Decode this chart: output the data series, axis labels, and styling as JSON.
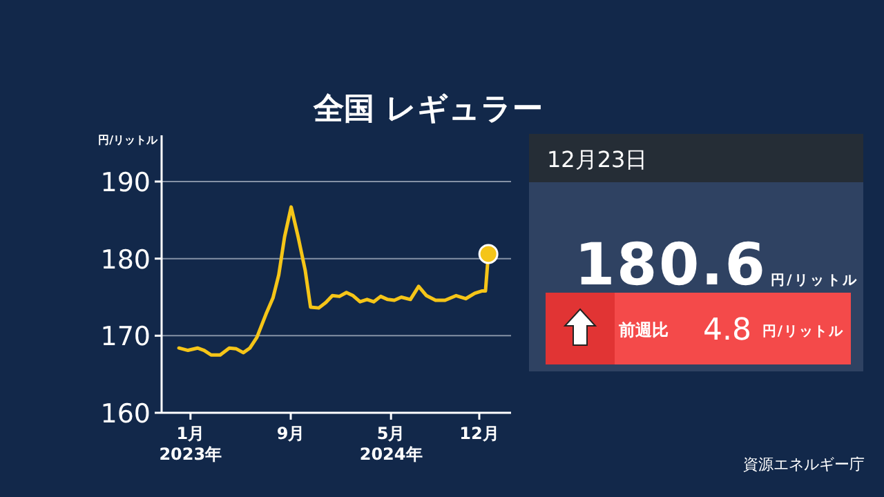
{
  "chart_data": {
    "type": "line",
    "title": "全国 レギュラー",
    "ylabel": "円/リットル",
    "xlim": [
      "2022-10-23",
      "2025-02-16"
    ],
    "xticks": [
      {
        "value": "2023-01-01",
        "label": "1月\n2023年"
      },
      {
        "value": "2023-09-01",
        "label": "9月"
      },
      {
        "value": "2024-05-01",
        "label": "5月\n2024年"
      },
      {
        "value": "2024-12-01",
        "label": "12月"
      }
    ],
    "ylim": [
      160,
      196
    ],
    "yticks": [
      160,
      170,
      180,
      190
    ],
    "grid": "y",
    "series": [
      {
        "color": "#f5c518",
        "marker": "none",
        "line_style": "solid",
        "x": [
          "2022-12-04",
          "2022-12-26",
          "2023-01-18",
          "2023-02-03",
          "2023-02-20",
          "2023-03-14",
          "2023-04-05",
          "2023-04-22",
          "2023-05-09",
          "2023-05-25",
          "2023-06-11",
          "2023-07-03",
          "2023-07-20",
          "2023-08-03",
          "2023-08-17",
          "2023-09-02",
          "2023-09-19",
          "2023-10-06",
          "2023-10-19",
          "2023-11-08",
          "2023-11-25",
          "2023-12-11",
          "2023-12-28",
          "2024-01-14",
          "2024-01-30",
          "2024-02-16",
          "2024-03-04",
          "2024-03-20",
          "2024-04-06",
          "2024-04-23",
          "2024-05-09",
          "2024-05-26",
          "2024-06-17",
          "2024-07-07",
          "2024-07-26",
          "2024-08-17",
          "2024-09-09",
          "2024-10-06",
          "2024-10-29",
          "2024-11-20",
          "2024-12-07",
          "2024-12-16",
          "2024-12-23"
        ],
        "values": [
          168.4,
          168.1,
          168.4,
          168.1,
          167.5,
          167.5,
          168.4,
          168.3,
          167.8,
          168.4,
          169.8,
          172.8,
          174.9,
          177.9,
          182.8,
          186.7,
          182.8,
          178.5,
          173.7,
          173.6,
          174.3,
          175.2,
          175.1,
          175.6,
          175.2,
          174.4,
          174.7,
          174.4,
          175.1,
          174.7,
          174.6,
          175.0,
          174.7,
          176.4,
          175.2,
          174.6,
          174.6,
          175.2,
          174.8,
          175.5,
          175.8,
          175.8,
          180.6
        ]
      },
      {
        "type": "scatter",
        "color": "#f5c518",
        "marker": "circle",
        "x": [
          "2024-12-23"
        ],
        "values": [
          180.6
        ]
      }
    ],
    "annotations": [
      "12月23日",
      "180.6",
      "円/リットル",
      "前週比",
      "4.8",
      "円/リットル",
      "資源エネルギー庁"
    ]
  }
}
